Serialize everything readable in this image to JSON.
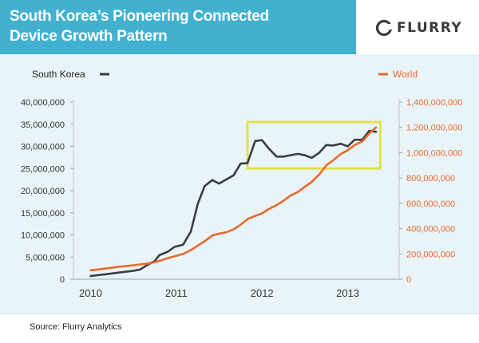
{
  "header": {
    "title_line1": "South Korea’s Pioneering Connected",
    "title_line2": "Device Growth Pattern",
    "brand_name": "FLURRY"
  },
  "footer": {
    "source": "Source: Flurry Analytics"
  },
  "colors": {
    "header_bg": "#41b1cf",
    "plot_bg": "#e9f4f9",
    "south_korea": "#3a3d42",
    "world": "#e9692c",
    "highlight": "#e3e14a"
  },
  "chart_data": {
    "type": "line",
    "x_ticks": [
      "2010",
      "2011",
      "2012",
      "2013"
    ],
    "left_axis": {
      "ticks": [
        "40,000,000",
        "35,000,000",
        "30,000,000",
        "25,000,000",
        "20,000,000",
        "15,000,000",
        "10,000,000",
        "5,000,000",
        "0"
      ],
      "ylim": [
        0,
        40000000
      ]
    },
    "right_axis": {
      "ticks": [
        "1,400,000,000",
        "1,200,000,000",
        "1,000,000,000",
        "800,000,000",
        "600,000,000",
        "400,000,000",
        "200,000,000",
        "0"
      ],
      "ylim": [
        0,
        1400000000
      ]
    },
    "series": [
      {
        "name": "South Korea",
        "axis": "left",
        "color": "#3a3d42",
        "points": [
          [
            2010.0,
            700000
          ],
          [
            2010.17,
            1100000
          ],
          [
            2010.33,
            1500000
          ],
          [
            2010.5,
            1900000
          ],
          [
            2010.58,
            2200000
          ],
          [
            2010.67,
            3300000
          ],
          [
            2010.75,
            4100000
          ],
          [
            2010.8,
            5400000
          ],
          [
            2010.9,
            6200000
          ],
          [
            2010.98,
            7300000
          ],
          [
            2011.08,
            7800000
          ],
          [
            2011.17,
            10800000
          ],
          [
            2011.25,
            17000000
          ],
          [
            2011.33,
            21000000
          ],
          [
            2011.42,
            22400000
          ],
          [
            2011.5,
            21600000
          ],
          [
            2011.58,
            22500000
          ],
          [
            2011.67,
            23500000
          ],
          [
            2011.75,
            26100000
          ],
          [
            2011.83,
            26200000
          ],
          [
            2011.92,
            31200000
          ],
          [
            2012.0,
            31400000
          ],
          [
            2012.08,
            29500000
          ],
          [
            2012.17,
            27700000
          ],
          [
            2012.25,
            27700000
          ],
          [
            2012.33,
            28000000
          ],
          [
            2012.42,
            28300000
          ],
          [
            2012.5,
            28000000
          ],
          [
            2012.58,
            27400000
          ],
          [
            2012.67,
            28600000
          ],
          [
            2012.75,
            30300000
          ],
          [
            2012.83,
            30200000
          ],
          [
            2012.92,
            30600000
          ],
          [
            2013.0,
            30000000
          ],
          [
            2013.08,
            31500000
          ],
          [
            2013.17,
            31500000
          ],
          [
            2013.25,
            33500000
          ],
          [
            2013.33,
            33300000
          ]
        ]
      },
      {
        "name": "World",
        "axis": "right",
        "color": "#e9692c",
        "points": [
          [
            2010.0,
            70000000
          ],
          [
            2010.17,
            84000000
          ],
          [
            2010.33,
            98000000
          ],
          [
            2010.5,
            110000000
          ],
          [
            2010.67,
            124000000
          ],
          [
            2010.75,
            135000000
          ],
          [
            2010.83,
            150000000
          ],
          [
            2010.92,
            170000000
          ],
          [
            2011.0,
            185000000
          ],
          [
            2011.08,
            200000000
          ],
          [
            2011.17,
            230000000
          ],
          [
            2011.25,
            265000000
          ],
          [
            2011.33,
            300000000
          ],
          [
            2011.42,
            345000000
          ],
          [
            2011.5,
            360000000
          ],
          [
            2011.58,
            370000000
          ],
          [
            2011.67,
            395000000
          ],
          [
            2011.75,
            430000000
          ],
          [
            2011.83,
            475000000
          ],
          [
            2011.92,
            500000000
          ],
          [
            2012.0,
            520000000
          ],
          [
            2012.08,
            555000000
          ],
          [
            2012.17,
            585000000
          ],
          [
            2012.25,
            620000000
          ],
          [
            2012.33,
            660000000
          ],
          [
            2012.42,
            690000000
          ],
          [
            2012.5,
            730000000
          ],
          [
            2012.58,
            770000000
          ],
          [
            2012.67,
            830000000
          ],
          [
            2012.75,
            900000000
          ],
          [
            2012.83,
            940000000
          ],
          [
            2012.92,
            990000000
          ],
          [
            2013.0,
            1020000000
          ],
          [
            2013.08,
            1060000000
          ],
          [
            2013.17,
            1090000000
          ],
          [
            2013.25,
            1150000000
          ],
          [
            2013.33,
            1200000000
          ]
        ]
      }
    ],
    "highlight_box": {
      "x_range": [
        2011.83,
        2013.38
      ],
      "left_y_range": [
        25000000,
        35500000
      ]
    },
    "legend": [
      {
        "name": "South Korea",
        "placement": "top-left",
        "color": "#3a3d42"
      },
      {
        "name": "World",
        "placement": "top-right",
        "color": "#e9692c"
      }
    ]
  }
}
